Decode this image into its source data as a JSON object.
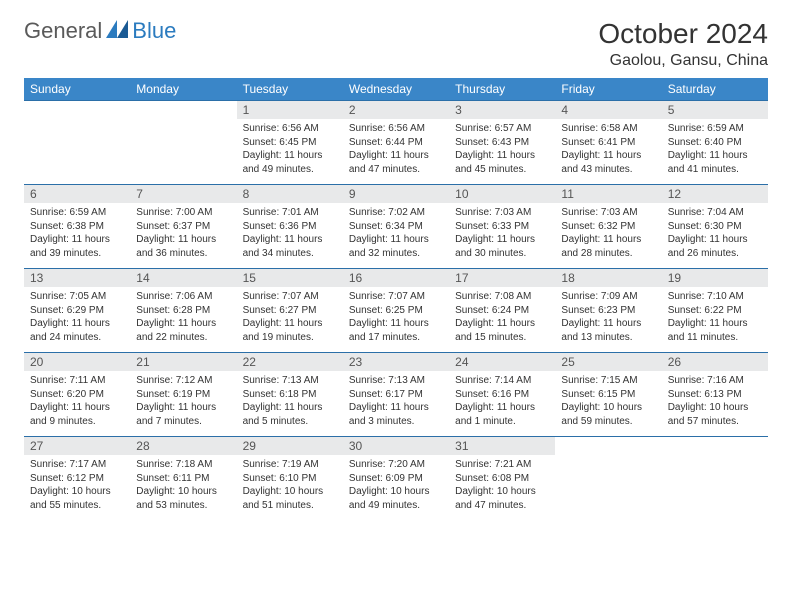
{
  "logo": {
    "part1": "General",
    "part2": "Blue"
  },
  "title": "October 2024",
  "location": "Gaolou, Gansu, China",
  "colors": {
    "header_bg": "#3a86c8",
    "header_text": "#ffffff",
    "daynum_bg": "#e8e9ea",
    "cell_border": "#2b6fa8",
    "logo_gray": "#5a5a5a",
    "logo_blue": "#2b7bbf",
    "text": "#333333"
  },
  "weekdays": [
    "Sunday",
    "Monday",
    "Tuesday",
    "Wednesday",
    "Thursday",
    "Friday",
    "Saturday"
  ],
  "layout": {
    "columns": 7,
    "rows": 5,
    "first_weekday_index": 2,
    "days_in_month": 31
  },
  "days": [
    {
      "n": 1,
      "sunrise": "6:56 AM",
      "sunset": "6:45 PM",
      "daylight": "11 hours and 49 minutes."
    },
    {
      "n": 2,
      "sunrise": "6:56 AM",
      "sunset": "6:44 PM",
      "daylight": "11 hours and 47 minutes."
    },
    {
      "n": 3,
      "sunrise": "6:57 AM",
      "sunset": "6:43 PM",
      "daylight": "11 hours and 45 minutes."
    },
    {
      "n": 4,
      "sunrise": "6:58 AM",
      "sunset": "6:41 PM",
      "daylight": "11 hours and 43 minutes."
    },
    {
      "n": 5,
      "sunrise": "6:59 AM",
      "sunset": "6:40 PM",
      "daylight": "11 hours and 41 minutes."
    },
    {
      "n": 6,
      "sunrise": "6:59 AM",
      "sunset": "6:38 PM",
      "daylight": "11 hours and 39 minutes."
    },
    {
      "n": 7,
      "sunrise": "7:00 AM",
      "sunset": "6:37 PM",
      "daylight": "11 hours and 36 minutes."
    },
    {
      "n": 8,
      "sunrise": "7:01 AM",
      "sunset": "6:36 PM",
      "daylight": "11 hours and 34 minutes."
    },
    {
      "n": 9,
      "sunrise": "7:02 AM",
      "sunset": "6:34 PM",
      "daylight": "11 hours and 32 minutes."
    },
    {
      "n": 10,
      "sunrise": "7:03 AM",
      "sunset": "6:33 PM",
      "daylight": "11 hours and 30 minutes."
    },
    {
      "n": 11,
      "sunrise": "7:03 AM",
      "sunset": "6:32 PM",
      "daylight": "11 hours and 28 minutes."
    },
    {
      "n": 12,
      "sunrise": "7:04 AM",
      "sunset": "6:30 PM",
      "daylight": "11 hours and 26 minutes."
    },
    {
      "n": 13,
      "sunrise": "7:05 AM",
      "sunset": "6:29 PM",
      "daylight": "11 hours and 24 minutes."
    },
    {
      "n": 14,
      "sunrise": "7:06 AM",
      "sunset": "6:28 PM",
      "daylight": "11 hours and 22 minutes."
    },
    {
      "n": 15,
      "sunrise": "7:07 AM",
      "sunset": "6:27 PM",
      "daylight": "11 hours and 19 minutes."
    },
    {
      "n": 16,
      "sunrise": "7:07 AM",
      "sunset": "6:25 PM",
      "daylight": "11 hours and 17 minutes."
    },
    {
      "n": 17,
      "sunrise": "7:08 AM",
      "sunset": "6:24 PM",
      "daylight": "11 hours and 15 minutes."
    },
    {
      "n": 18,
      "sunrise": "7:09 AM",
      "sunset": "6:23 PM",
      "daylight": "11 hours and 13 minutes."
    },
    {
      "n": 19,
      "sunrise": "7:10 AM",
      "sunset": "6:22 PM",
      "daylight": "11 hours and 11 minutes."
    },
    {
      "n": 20,
      "sunrise": "7:11 AM",
      "sunset": "6:20 PM",
      "daylight": "11 hours and 9 minutes."
    },
    {
      "n": 21,
      "sunrise": "7:12 AM",
      "sunset": "6:19 PM",
      "daylight": "11 hours and 7 minutes."
    },
    {
      "n": 22,
      "sunrise": "7:13 AM",
      "sunset": "6:18 PM",
      "daylight": "11 hours and 5 minutes."
    },
    {
      "n": 23,
      "sunrise": "7:13 AM",
      "sunset": "6:17 PM",
      "daylight": "11 hours and 3 minutes."
    },
    {
      "n": 24,
      "sunrise": "7:14 AM",
      "sunset": "6:16 PM",
      "daylight": "11 hours and 1 minute."
    },
    {
      "n": 25,
      "sunrise": "7:15 AM",
      "sunset": "6:15 PM",
      "daylight": "10 hours and 59 minutes."
    },
    {
      "n": 26,
      "sunrise": "7:16 AM",
      "sunset": "6:13 PM",
      "daylight": "10 hours and 57 minutes."
    },
    {
      "n": 27,
      "sunrise": "7:17 AM",
      "sunset": "6:12 PM",
      "daylight": "10 hours and 55 minutes."
    },
    {
      "n": 28,
      "sunrise": "7:18 AM",
      "sunset": "6:11 PM",
      "daylight": "10 hours and 53 minutes."
    },
    {
      "n": 29,
      "sunrise": "7:19 AM",
      "sunset": "6:10 PM",
      "daylight": "10 hours and 51 minutes."
    },
    {
      "n": 30,
      "sunrise": "7:20 AM",
      "sunset": "6:09 PM",
      "daylight": "10 hours and 49 minutes."
    },
    {
      "n": 31,
      "sunrise": "7:21 AM",
      "sunset": "6:08 PM",
      "daylight": "10 hours and 47 minutes."
    }
  ],
  "labels": {
    "sunrise": "Sunrise:",
    "sunset": "Sunset:",
    "daylight": "Daylight:"
  }
}
